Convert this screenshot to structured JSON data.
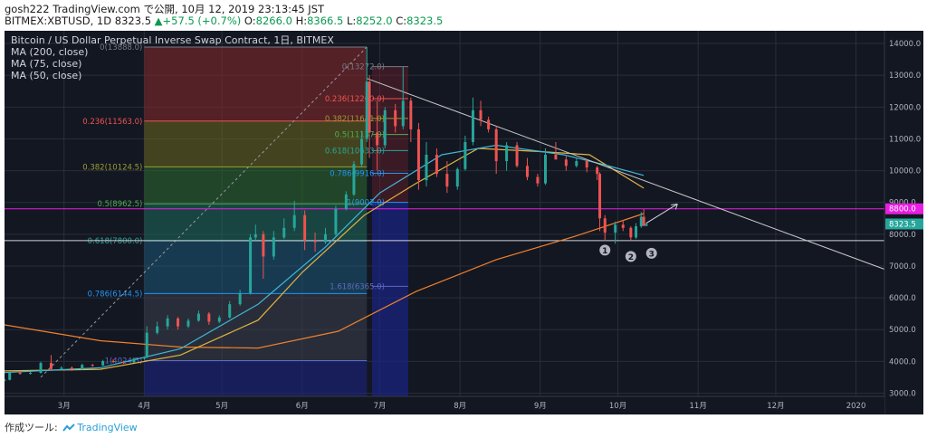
{
  "header": {
    "author": "gosh222",
    "published": "TradingView.com で公開, 10月 12, 2019 23:13:45 JST",
    "symbol": "BITMEX:XBTUSD, 1D",
    "last": "8323.5",
    "change": "+57.5 (+0.7%)",
    "ohlc": {
      "o_label": "O:",
      "o": "8266.0",
      "h_label": "H:",
      "h": "8366.5",
      "l_label": "L:",
      "l": "8252.0",
      "c_label": "C:",
      "c": "8323.5"
    },
    "up_arrow": "▲"
  },
  "legend": {
    "title": "Bitcoin / US Dollar Perpetual Inverse Swap Contract, 1日, BITMEX",
    "ma200": "MA (200, close)",
    "ma75": "MA (75, close)",
    "ma50": "MA (50, close)"
  },
  "colors": {
    "background": "#131722",
    "grid": "#2a2e39",
    "candle_up": "#26a69a",
    "candle_down": "#ef5350",
    "ma200": "#f0812e",
    "ma75": "#e3b341",
    "ma50": "#40b6d6",
    "trendline": "#c8c8c8",
    "hline_8800": "#e91ee3",
    "last_price_badge": "#26a69a",
    "fib_0": "#787b86",
    "fib_0236": "#ef5350",
    "fib_0382": "#9c9c2e",
    "fib_05": "#4caf50",
    "fib_0618": "#26a69a",
    "fib_0786": "#2196f3",
    "fib_1": "#5c6bc0"
  },
  "price_axis": {
    "ticks": [
      "14000.0",
      "13000.0",
      "12000.0",
      "11000.0",
      "10000.0",
      "9000.0",
      "8000.0",
      "7000.0",
      "6000.0",
      "5000.0",
      "4000.0",
      "3000.0"
    ],
    "badge_8800": "8800.0",
    "badge_last": "8323.5"
  },
  "time_axis": {
    "ticks": [
      "3月",
      "4月",
      "5月",
      "6月",
      "7月",
      "8月",
      "9月",
      "10月",
      "11月",
      "12月",
      "2020"
    ]
  },
  "fib_left": {
    "labels": [
      "0(13888.0)",
      "0.236(11563.0)",
      "0.382(10124.5)",
      "0.5(8962.5)",
      "0.618(7800.0)",
      "0.786(6144.5)",
      "1(4024.5)"
    ]
  },
  "fib_right": {
    "labels": [
      "0(13272.0)",
      "0.236(12260.0)",
      "0.382(11641.0)",
      "0.5(11137.0)",
      "0.618(10633.0)",
      "0.786(9916.0)",
      "1(9002.0)",
      "1.618(6365.0)"
    ]
  },
  "markers": [
    "1",
    "2",
    "3"
  ],
  "chart_data": {
    "type": "candlestick",
    "symbol": "BITMEX:XBTUSD",
    "interval": "1D",
    "y_range": [
      2900,
      14400
    ],
    "x_range": [
      "2019-02-06",
      "2020-01-12"
    ],
    "moving_averages": [
      {
        "name": "MA (200, close)",
        "points": [
          [
            "2019-02-06",
            5150
          ],
          [
            "2019-03-15",
            4650
          ],
          [
            "2019-04-15",
            4450
          ],
          [
            "2019-05-15",
            4420
          ],
          [
            "2019-06-15",
            4950
          ],
          [
            "2019-07-15",
            6200
          ],
          [
            "2019-08-15",
            7200
          ],
          [
            "2019-09-15",
            7950
          ],
          [
            "2019-10-11",
            8650
          ]
        ]
      },
      {
        "name": "MA (75, close)",
        "points": [
          [
            "2019-02-06",
            3700
          ],
          [
            "2019-03-15",
            3750
          ],
          [
            "2019-04-15",
            4200
          ],
          [
            "2019-05-15",
            5300
          ],
          [
            "2019-06-01",
            6800
          ],
          [
            "2019-06-25",
            8600
          ],
          [
            "2019-07-15",
            9600
          ],
          [
            "2019-08-08",
            10700
          ],
          [
            "2019-09-01",
            10600
          ],
          [
            "2019-09-20",
            10500
          ],
          [
            "2019-10-11",
            9450
          ]
        ]
      },
      {
        "name": "MA (50, close)",
        "points": [
          [
            "2019-02-06",
            3650
          ],
          [
            "2019-03-15",
            3800
          ],
          [
            "2019-04-15",
            4400
          ],
          [
            "2019-05-15",
            5800
          ],
          [
            "2019-06-10",
            7600
          ],
          [
            "2019-07-01",
            9300
          ],
          [
            "2019-07-25",
            10500
          ],
          [
            "2019-08-15",
            10800
          ],
          [
            "2019-09-10",
            10500
          ],
          [
            "2019-09-25",
            10200
          ],
          [
            "2019-10-11",
            9850
          ]
        ]
      }
    ],
    "candles": [
      [
        "2019-02-06",
        3400,
        3450,
        3380,
        3420
      ],
      [
        "2019-02-08",
        3420,
        3680,
        3400,
        3650
      ],
      [
        "2019-02-12",
        3650,
        3700,
        3580,
        3610
      ],
      [
        "2019-02-16",
        3610,
        3680,
        3590,
        3640
      ],
      [
        "2019-02-20",
        3640,
        3990,
        3620,
        3950
      ],
      [
        "2019-02-24",
        3950,
        4200,
        3700,
        3760
      ],
      [
        "2019-02-28",
        3760,
        3850,
        3720,
        3800
      ],
      [
        "2019-03-04",
        3800,
        3840,
        3700,
        3750
      ],
      [
        "2019-03-08",
        3750,
        3930,
        3740,
        3890
      ],
      [
        "2019-03-12",
        3890,
        3920,
        3830,
        3870
      ],
      [
        "2019-03-16",
        3870,
        4050,
        3860,
        4010
      ],
      [
        "2019-03-20",
        4010,
        4060,
        3950,
        3980
      ],
      [
        "2019-03-24",
        3980,
        4020,
        3920,
        3970
      ],
      [
        "2019-03-28",
        3970,
        4120,
        3950,
        4090
      ],
      [
        "2019-04-01",
        4090,
        4150,
        4050,
        4130
      ],
      [
        "2019-04-02",
        4130,
        5100,
        4100,
        4900
      ],
      [
        "2019-04-06",
        4900,
        5250,
        4850,
        5100
      ],
      [
        "2019-04-10",
        5100,
        5450,
        5000,
        5350
      ],
      [
        "2019-04-14",
        5350,
        5400,
        5000,
        5100
      ],
      [
        "2019-04-18",
        5100,
        5350,
        5050,
        5280
      ],
      [
        "2019-04-22",
        5280,
        5600,
        5250,
        5500
      ],
      [
        "2019-04-26",
        5500,
        5550,
        5150,
        5250
      ],
      [
        "2019-04-30",
        5250,
        5450,
        5200,
        5380
      ],
      [
        "2019-05-04",
        5380,
        5900,
        5350,
        5800
      ],
      [
        "2019-05-08",
        5800,
        6250,
        5750,
        6150
      ],
      [
        "2019-05-12",
        6150,
        8000,
        6100,
        7900
      ],
      [
        "2019-05-14",
        7900,
        8300,
        7800,
        8000
      ],
      [
        "2019-05-17",
        8000,
        8100,
        6600,
        7300
      ],
      [
        "2019-05-21",
        7300,
        8100,
        7200,
        7900
      ],
      [
        "2019-05-25",
        7900,
        8500,
        7850,
        8200
      ],
      [
        "2019-05-29",
        8200,
        9050,
        8100,
        8600
      ],
      [
        "2019-06-02",
        8600,
        8750,
        7500,
        7800
      ],
      [
        "2019-06-06",
        7800,
        8050,
        7450,
        7750
      ],
      [
        "2019-06-10",
        7750,
        8200,
        7700,
        8000
      ],
      [
        "2019-06-14",
        8000,
        8900,
        7950,
        8800
      ],
      [
        "2019-06-18",
        8800,
        9350,
        8750,
        9250
      ],
      [
        "2019-06-21",
        9250,
        10300,
        9200,
        10200
      ],
      [
        "2019-06-24",
        10200,
        11250,
        10100,
        11000
      ],
      [
        "2019-06-26",
        11000,
        13888,
        10900,
        12800
      ],
      [
        "2019-06-27",
        12800,
        13000,
        10400,
        11200
      ],
      [
        "2019-06-30",
        11200,
        12200,
        10000,
        10800
      ],
      [
        "2019-07-03",
        10800,
        12000,
        10700,
        11900
      ],
      [
        "2019-07-07",
        11900,
        12100,
        11200,
        11400
      ],
      [
        "2019-07-10",
        11400,
        13272,
        11300,
        12200
      ],
      [
        "2019-07-13",
        12200,
        12300,
        10900,
        11300
      ],
      [
        "2019-07-16",
        11300,
        11500,
        9400,
        9700
      ],
      [
        "2019-07-19",
        9700,
        10900,
        9500,
        10500
      ],
      [
        "2019-07-23",
        10500,
        10700,
        9800,
        9900
      ],
      [
        "2019-07-27",
        9900,
        10300,
        9300,
        9500
      ],
      [
        "2019-07-31",
        9500,
        10100,
        9400,
        10050
      ],
      [
        "2019-08-03",
        10050,
        11100,
        10000,
        10900
      ],
      [
        "2019-08-06",
        10900,
        12300,
        10800,
        11900
      ],
      [
        "2019-08-09",
        11900,
        12200,
        11400,
        11600
      ],
      [
        "2019-08-12",
        11600,
        11700,
        11200,
        11300
      ],
      [
        "2019-08-15",
        11300,
        11400,
        9900,
        10300
      ],
      [
        "2019-08-19",
        10300,
        10900,
        10000,
        10800
      ],
      [
        "2019-08-23",
        10800,
        10900,
        10100,
        10150
      ],
      [
        "2019-08-27",
        10150,
        10400,
        9700,
        9800
      ],
      [
        "2019-08-31",
        9800,
        9900,
        9500,
        9600
      ],
      [
        "2019-09-03",
        9600,
        10700,
        9550,
        10500
      ],
      [
        "2019-09-07",
        10500,
        10900,
        10400,
        10350
      ],
      [
        "2019-09-11",
        10350,
        10450,
        10000,
        10150
      ],
      [
        "2019-09-15",
        10150,
        10400,
        10100,
        10300
      ],
      [
        "2019-09-19",
        10300,
        10350,
        9950,
        10100
      ],
      [
        "2019-09-23",
        10100,
        10150,
        9700,
        9900
      ],
      [
        "2019-09-24",
        9900,
        9950,
        8100,
        8500
      ],
      [
        "2019-09-26",
        8500,
        8600,
        7800,
        8050
      ],
      [
        "2019-09-30",
        8050,
        8400,
        7700,
        8300
      ],
      [
        "2019-10-03",
        8300,
        8450,
        8100,
        8200
      ],
      [
        "2019-10-06",
        8200,
        8250,
        7800,
        7900
      ],
      [
        "2019-10-08",
        7900,
        8350,
        7850,
        8250
      ],
      [
        "2019-10-10",
        8250,
        8700,
        8200,
        8550
      ],
      [
        "2019-10-11",
        8550,
        8800,
        8250,
        8266
      ],
      [
        "2019-10-12",
        8266,
        8366.5,
        8252,
        8323.5
      ]
    ],
    "trendline": {
      "from": [
        "2019-06-26",
        12900
      ],
      "to": [
        "2020-01-12",
        6900
      ]
    },
    "horizontal_lines": [
      {
        "price": 8800.0,
        "label": "8800.0"
      },
      {
        "price": 7800.0
      }
    ],
    "fib_left": {
      "high": 13888.0,
      "low": 4024.5
    },
    "fib_right": {
      "high": 13272.0,
      "low": 9002.0
    }
  }
}
